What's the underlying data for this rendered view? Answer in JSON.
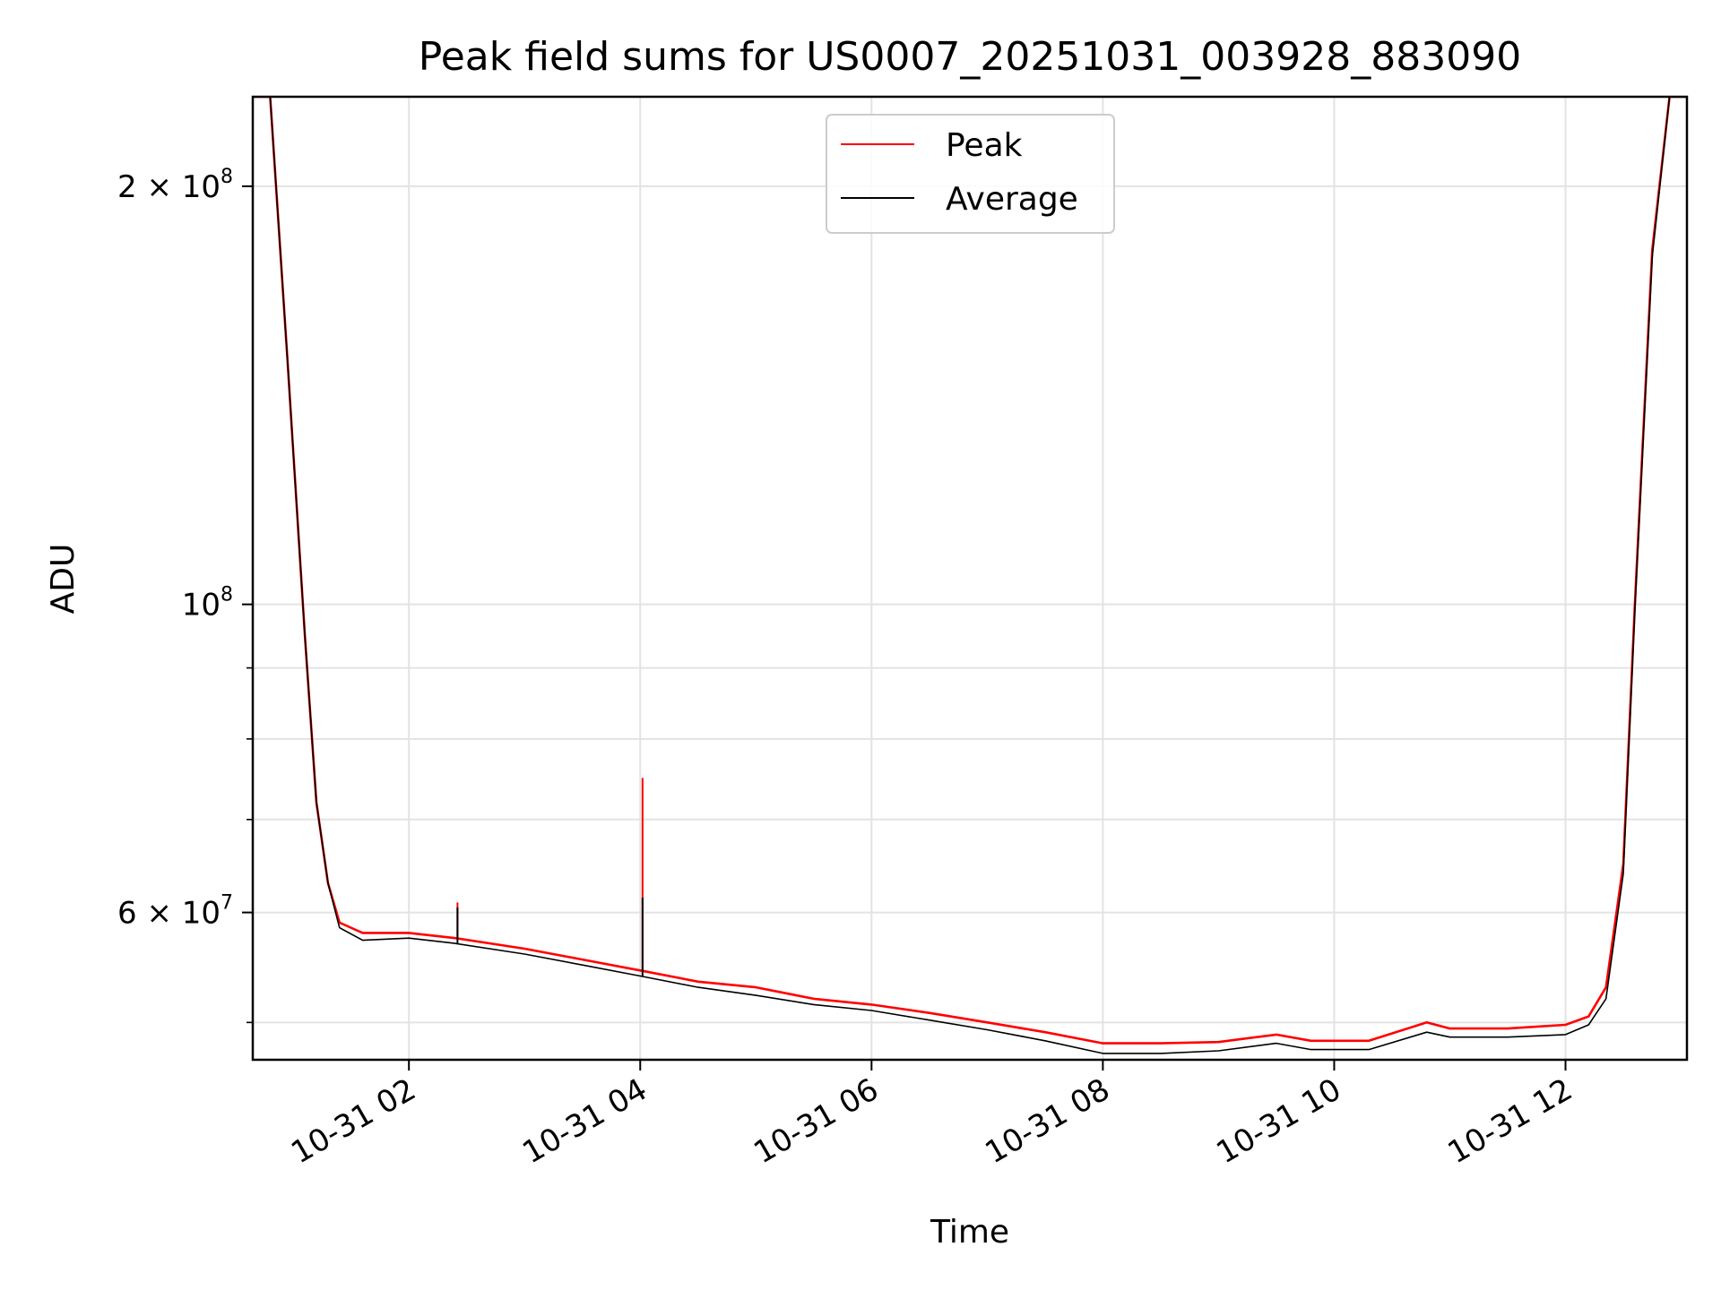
{
  "chart_data": {
    "type": "line",
    "title": "Peak field sums for US0007_20251031_003928_883090",
    "xlabel": "Time",
    "ylabel": "ADU",
    "yscale": "log",
    "xlim_hours": [
      0.65,
      13.05
    ],
    "ylim": [
      47000000,
      232000000
    ],
    "x_ticks": [
      {
        "hours": 2,
        "label": "10-31 02"
      },
      {
        "hours": 4,
        "label": "10-31 04"
      },
      {
        "hours": 6,
        "label": "10-31 06"
      },
      {
        "hours": 8,
        "label": "10-31 08"
      },
      {
        "hours": 10,
        "label": "10-31 10"
      },
      {
        "hours": 12,
        "label": "10-31 12"
      }
    ],
    "y_major_ticks": [
      {
        "value": 60000000,
        "mantissa": "6 × 10",
        "exp": "7"
      },
      {
        "value": 100000000,
        "mantissa": "10",
        "exp": "8"
      },
      {
        "value": 200000000,
        "mantissa": "2 × 10",
        "exp": "8"
      }
    ],
    "y_minor_ticks": [
      50000000,
      70000000,
      80000000,
      90000000
    ],
    "grid": true,
    "legend_position": "upper center",
    "series": [
      {
        "name": "Peak",
        "color": "#ff0000",
        "points": [
          [
            0.65,
            232000000
          ],
          [
            0.8,
            232000000
          ],
          [
            0.95,
            150000000
          ],
          [
            1.1,
            95000000
          ],
          [
            1.2,
            72000000
          ],
          [
            1.3,
            63000000
          ],
          [
            1.4,
            59000000
          ],
          [
            1.6,
            58000000
          ],
          [
            2.0,
            58000000
          ],
          [
            2.4,
            57500000
          ],
          [
            3.0,
            56500000
          ],
          [
            3.5,
            55500000
          ],
          [
            4.0,
            54500000
          ],
          [
            4.5,
            53500000
          ],
          [
            5.0,
            53000000
          ],
          [
            5.5,
            52000000
          ],
          [
            6.0,
            51500000
          ],
          [
            6.5,
            50800000
          ],
          [
            7.0,
            50000000
          ],
          [
            7.5,
            49200000
          ],
          [
            8.0,
            48300000
          ],
          [
            8.5,
            48300000
          ],
          [
            9.0,
            48400000
          ],
          [
            9.5,
            49000000
          ],
          [
            9.8,
            48500000
          ],
          [
            10.3,
            48500000
          ],
          [
            10.8,
            50000000
          ],
          [
            11.0,
            49500000
          ],
          [
            11.5,
            49500000
          ],
          [
            12.0,
            49800000
          ],
          [
            12.2,
            50500000
          ],
          [
            12.35,
            53000000
          ],
          [
            12.5,
            65000000
          ],
          [
            12.6,
            100000000
          ],
          [
            12.75,
            180000000
          ],
          [
            12.9,
            232000000
          ],
          [
            13.05,
            232000000
          ]
        ],
        "spikes": [
          {
            "hours": 4.02,
            "value": 75000000
          },
          {
            "hours": 2.42,
            "value": 61000000
          }
        ]
      },
      {
        "name": "Average",
        "color": "#000000",
        "points": [
          [
            0.65,
            232000000
          ],
          [
            0.8,
            232000000
          ],
          [
            0.95,
            150000000
          ],
          [
            1.1,
            95000000
          ],
          [
            1.2,
            72000000
          ],
          [
            1.3,
            63000000
          ],
          [
            1.4,
            58500000
          ],
          [
            1.6,
            57300000
          ],
          [
            2.0,
            57500000
          ],
          [
            2.4,
            57000000
          ],
          [
            3.0,
            56000000
          ],
          [
            3.5,
            55000000
          ],
          [
            4.0,
            54000000
          ],
          [
            4.5,
            53000000
          ],
          [
            5.0,
            52300000
          ],
          [
            5.5,
            51500000
          ],
          [
            6.0,
            51000000
          ],
          [
            6.5,
            50200000
          ],
          [
            7.0,
            49400000
          ],
          [
            7.5,
            48500000
          ],
          [
            8.0,
            47500000
          ],
          [
            8.5,
            47500000
          ],
          [
            9.0,
            47700000
          ],
          [
            9.5,
            48300000
          ],
          [
            9.8,
            47800000
          ],
          [
            10.3,
            47800000
          ],
          [
            10.8,
            49200000
          ],
          [
            11.0,
            48800000
          ],
          [
            11.5,
            48800000
          ],
          [
            12.0,
            49000000
          ],
          [
            12.2,
            49800000
          ],
          [
            12.35,
            52000000
          ],
          [
            12.5,
            64000000
          ],
          [
            12.6,
            99000000
          ],
          [
            12.75,
            178000000
          ],
          [
            12.9,
            232000000
          ],
          [
            13.05,
            232000000
          ]
        ],
        "spikes": [
          {
            "hours": 4.02,
            "value": 61500000
          },
          {
            "hours": 2.42,
            "value": 60500000
          }
        ]
      }
    ]
  }
}
